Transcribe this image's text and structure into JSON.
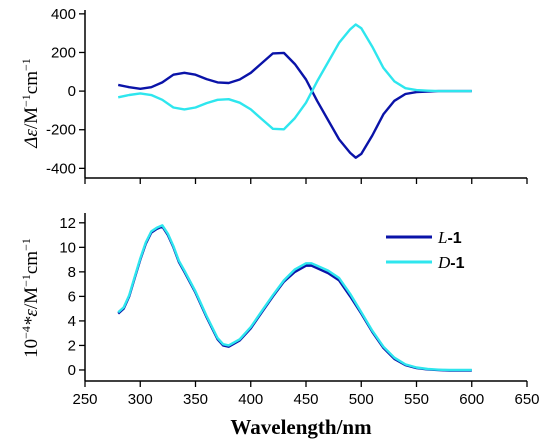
{
  "chart_data": [
    {
      "type": "line",
      "title": "",
      "xlabel": "",
      "ylabel_parts": [
        "Δε",
        "/M",
        "−1",
        "cm",
        "−1"
      ],
      "xlim": [
        250,
        650
      ],
      "ylim": [
        -450,
        420
      ],
      "yticks": [
        -400,
        -200,
        0,
        200,
        400
      ],
      "series": [
        {
          "color": "#0a13a8",
          "x": [
            280,
            290,
            300,
            310,
            320,
            330,
            340,
            350,
            360,
            370,
            380,
            390,
            400,
            410,
            420,
            430,
            440,
            450,
            460,
            470,
            480,
            490,
            495,
            500,
            510,
            520,
            530,
            540,
            550,
            560,
            570,
            580,
            590,
            600
          ],
          "y": [
            32,
            20,
            12,
            20,
            45,
            85,
            95,
            85,
            62,
            45,
            42,
            60,
            95,
            145,
            195,
            198,
            140,
            60,
            -50,
            -150,
            -250,
            -320,
            -345,
            -325,
            -230,
            -120,
            -50,
            -15,
            -5,
            -2,
            0,
            0,
            0,
            0
          ]
        },
        {
          "color": "#2ee6ee",
          "x": [
            280,
            290,
            300,
            310,
            320,
            330,
            340,
            350,
            360,
            370,
            380,
            390,
            400,
            410,
            420,
            430,
            440,
            450,
            460,
            470,
            480,
            490,
            495,
            500,
            510,
            520,
            530,
            540,
            550,
            560,
            570,
            580,
            590,
            600
          ],
          "y": [
            -32,
            -20,
            -12,
            -20,
            -45,
            -85,
            -95,
            -85,
            -62,
            -45,
            -42,
            -60,
            -95,
            -145,
            -195,
            -198,
            -140,
            -60,
            50,
            150,
            250,
            320,
            345,
            325,
            230,
            120,
            50,
            15,
            5,
            2,
            0,
            0,
            0,
            0
          ]
        }
      ]
    },
    {
      "type": "line",
      "title": "",
      "xlabel": "Wavelength/nm",
      "ylabel_parts": [
        "10",
        "−4",
        "*ε",
        "/M",
        "−1",
        "cm",
        "−1"
      ],
      "xlim": [
        250,
        650
      ],
      "ylim": [
        -0.9,
        12.8
      ],
      "xticks": [
        250,
        300,
        350,
        400,
        450,
        500,
        550,
        600,
        650
      ],
      "yticks": [
        0,
        2,
        4,
        6,
        8,
        10,
        12
      ],
      "legend_position": "top-right",
      "series": [
        {
          "name_parts": [
            "L",
            "-1"
          ],
          "color": "#0a13a8",
          "x": [
            280,
            285,
            290,
            295,
            300,
            305,
            310,
            315,
            320,
            325,
            330,
            335,
            340,
            350,
            360,
            370,
            375,
            380,
            390,
            400,
            410,
            420,
            430,
            440,
            450,
            455,
            460,
            470,
            480,
            490,
            500,
            510,
            520,
            530,
            540,
            550,
            560,
            570,
            580,
            590,
            600
          ],
          "y": [
            4.6,
            5.0,
            6.0,
            7.5,
            9.0,
            10.3,
            11.2,
            11.5,
            11.7,
            11.0,
            10.0,
            8.8,
            8.0,
            6.3,
            4.3,
            2.5,
            2.0,
            1.9,
            2.4,
            3.4,
            4.7,
            6.0,
            7.2,
            8.0,
            8.5,
            8.5,
            8.3,
            7.9,
            7.3,
            6.0,
            4.6,
            3.1,
            1.8,
            0.9,
            0.4,
            0.15,
            0.05,
            0.0,
            -0.05,
            -0.05,
            -0.05
          ]
        },
        {
          "name_parts": [
            "D",
            "-1"
          ],
          "color": "#2ee6ee",
          "x": [
            280,
            285,
            290,
            295,
            300,
            305,
            310,
            315,
            320,
            325,
            330,
            335,
            340,
            350,
            360,
            370,
            375,
            380,
            390,
            400,
            410,
            420,
            430,
            440,
            450,
            455,
            460,
            470,
            480,
            490,
            500,
            510,
            520,
            530,
            540,
            550,
            560,
            570,
            580,
            590,
            600
          ],
          "y": [
            4.7,
            5.1,
            6.1,
            7.6,
            9.1,
            10.4,
            11.3,
            11.6,
            11.8,
            11.1,
            10.1,
            8.9,
            8.1,
            6.4,
            4.4,
            2.6,
            2.1,
            2.0,
            2.5,
            3.5,
            4.8,
            6.1,
            7.3,
            8.2,
            8.7,
            8.7,
            8.5,
            8.1,
            7.5,
            6.2,
            4.7,
            3.2,
            1.9,
            1.0,
            0.45,
            0.2,
            0.08,
            0.02,
            0.0,
            0.0,
            0.0
          ]
        }
      ]
    }
  ]
}
